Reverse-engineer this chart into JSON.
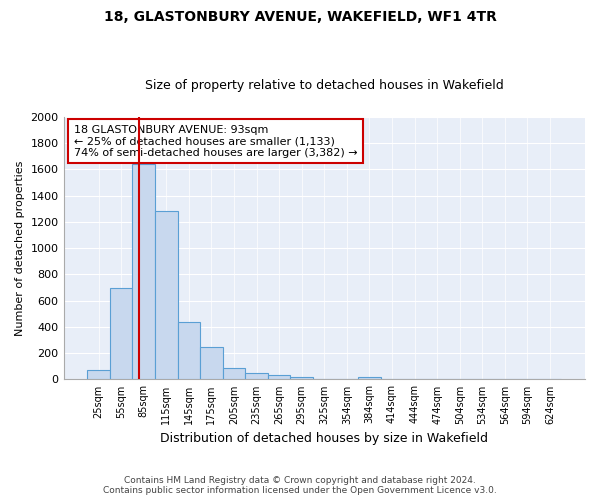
{
  "title": "18, GLASTONBURY AVENUE, WAKEFIELD, WF1 4TR",
  "subtitle": "Size of property relative to detached houses in Wakefield",
  "xlabel": "Distribution of detached houses by size in Wakefield",
  "ylabel": "Number of detached properties",
  "bar_labels": [
    "25sqm",
    "55sqm",
    "85sqm",
    "115sqm",
    "145sqm",
    "175sqm",
    "205sqm",
    "235sqm",
    "265sqm",
    "295sqm",
    "325sqm",
    "354sqm",
    "384sqm",
    "414sqm",
    "444sqm",
    "474sqm",
    "504sqm",
    "534sqm",
    "564sqm",
    "594sqm",
    "624sqm"
  ],
  "bar_values": [
    70,
    700,
    1640,
    1280,
    440,
    250,
    90,
    50,
    30,
    20,
    0,
    0,
    15,
    0,
    0,
    0,
    0,
    0,
    0,
    0,
    0
  ],
  "bar_color": "#c8d8ee",
  "bar_edge_color": "#5a9fd4",
  "vline_color": "#cc0000",
  "annotation_line1": "18 GLASTONBURY AVENUE: 93sqm",
  "annotation_line2": "← 25% of detached houses are smaller (1,133)",
  "annotation_line3": "74% of semi-detached houses are larger (3,382) →",
  "annotation_box_color": "#ffffff",
  "annotation_box_edge": "#cc0000",
  "ylim": [
    0,
    2000
  ],
  "yticks": [
    0,
    200,
    400,
    600,
    800,
    1000,
    1200,
    1400,
    1600,
    1800,
    2000
  ],
  "footnote_line1": "Contains HM Land Registry data © Crown copyright and database right 2024.",
  "footnote_line2": "Contains public sector information licensed under the Open Government Licence v3.0.",
  "bg_color": "#ffffff",
  "plot_bg_color": "#e8eef8"
}
